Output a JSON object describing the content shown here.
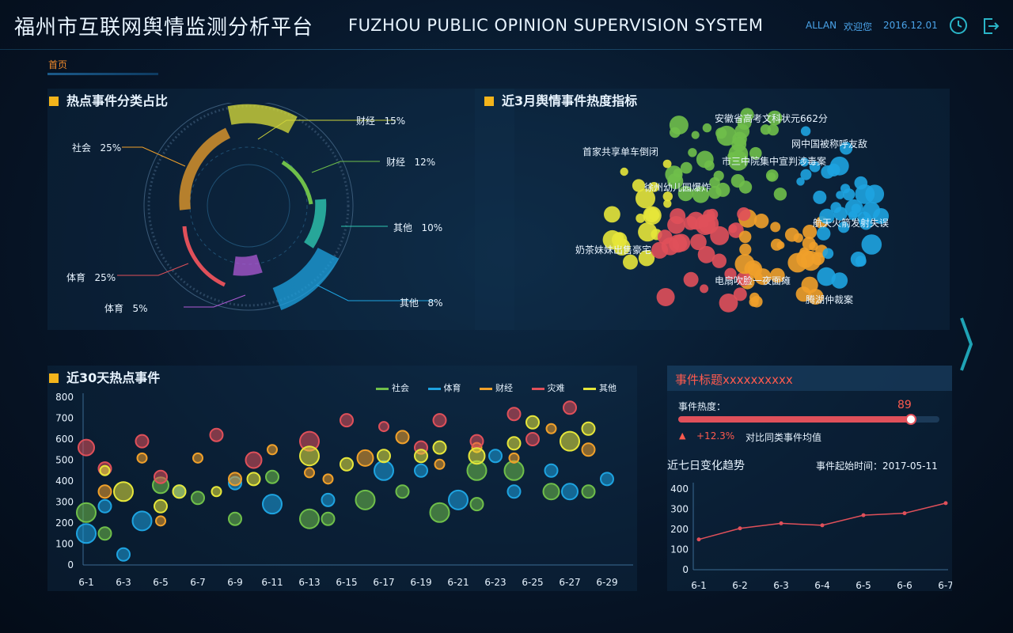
{
  "header": {
    "title": "福州市互联网舆情监测分析平台",
    "subtitle": "FUZHOU PUBLIC OPINION SUPERVISION SYSTEM",
    "user": "ALLAN",
    "welcome": "欢迎您",
    "date": "2016.12.01",
    "clock_icon": "clock-icon",
    "logout_icon": "logout-icon"
  },
  "nav": {
    "home": "首页"
  },
  "donut": {
    "title": "热点事件分类占比",
    "labels": [
      {
        "text": "财经",
        "pct": "15%",
        "color": "#cfd43a"
      },
      {
        "text": "财经",
        "pct": "12%",
        "color": "#6fbf4a"
      },
      {
        "text": "其他",
        "pct": "10%",
        "color": "#2ec7b0"
      },
      {
        "text": "其他",
        "pct": "8%",
        "color": "#1ea3e0"
      },
      {
        "text": "体育",
        "pct": "5%",
        "color": "#b05ad6"
      },
      {
        "text": "体育",
        "pct": "25%",
        "color": "#e0505a"
      },
      {
        "text": "社会",
        "pct": "25%",
        "color": "#f0a02a"
      }
    ]
  },
  "bubble_cloud": {
    "title": "近3月舆情事件热度指标",
    "labels": [
      "安徽省高考文科状元662分",
      "首家共享单车倒闭",
      "网中国被称呼友敌",
      "市三中院集中宣判涉毒案",
      "徐州幼儿园爆炸",
      "航天火箭发射失误",
      "奶茶妹妹出售豪宅",
      "电扇吹脸一夜面瘫",
      "腾湖仲裁案"
    ]
  },
  "scatter": {
    "title": "近30天热点事件",
    "legend": [
      {
        "name": "社会",
        "color": "#6fbf4a"
      },
      {
        "name": "体育",
        "color": "#1ea3e0"
      },
      {
        "name": "财经",
        "color": "#f0a02a"
      },
      {
        "name": "灾难",
        "color": "#e0505a"
      },
      {
        "name": "其他",
        "color": "#e6e63a"
      }
    ]
  },
  "detail": {
    "title": "事件标题xxxxxxxxxx",
    "heat_label": "事件热度：",
    "heat_value": "89",
    "heat_fraction": 0.89,
    "change": "+12.3%",
    "change_note": "对比同类事件均值",
    "trend_title": "近七日变化趋势",
    "start_time": "事件起始时间：2017-05-11"
  },
  "chart_data": [
    {
      "type": "scatter",
      "title": "近30天热点事件",
      "categories": [
        "6-1",
        "6-3",
        "6-5",
        "6-7",
        "6-9",
        "6-11",
        "6-13",
        "6-15",
        "6-17",
        "6-19",
        "6-21",
        "6-23",
        "6-25",
        "6-27",
        "6-29"
      ],
      "x_ticks": [
        "6-1",
        "6-3",
        "6-5",
        "6-7",
        "6-9",
        "6-11",
        "6-13",
        "6-15",
        "6-17",
        "6-19",
        "6-21",
        "6-23",
        "6-25",
        "6-27",
        "6-29"
      ],
      "y_ticks": [
        "0",
        "100",
        "200",
        "300",
        "400",
        "500",
        "600",
        "700",
        "800"
      ],
      "ylim": [
        0,
        800
      ],
      "series": [
        {
          "name": "社会",
          "color": "#6fbf4a",
          "points": [
            [
              1,
              250,
              12
            ],
            [
              2,
              150,
              8
            ],
            [
              5,
              380,
              10
            ],
            [
              7,
              320,
              8
            ],
            [
              9,
              220,
              8
            ],
            [
              11,
              420,
              8
            ],
            [
              13,
              220,
              12
            ],
            [
              14,
              220,
              8
            ],
            [
              16,
              310,
              12
            ],
            [
              18,
              350,
              8
            ],
            [
              20,
              250,
              12
            ],
            [
              22,
              290,
              8
            ],
            [
              22,
              450,
              12
            ],
            [
              24,
              450,
              12
            ],
            [
              26,
              350,
              10
            ],
            [
              28,
              350,
              8
            ]
          ]
        },
        {
          "name": "体育",
          "color": "#1ea3e0",
          "points": [
            [
              1,
              150,
              12
            ],
            [
              2,
              280,
              8
            ],
            [
              3,
              50,
              8
            ],
            [
              4,
              210,
              12
            ],
            [
              6,
              350,
              8
            ],
            [
              9,
              390,
              8
            ],
            [
              11,
              290,
              12
            ],
            [
              14,
              310,
              8
            ],
            [
              17,
              450,
              12
            ],
            [
              19,
              450,
              8
            ],
            [
              21,
              310,
              12
            ],
            [
              23,
              520,
              8
            ],
            [
              24,
              350,
              8
            ],
            [
              26,
              450,
              8
            ],
            [
              27,
              350,
              10
            ],
            [
              29,
              410,
              8
            ]
          ]
        },
        {
          "name": "财经",
          "color": "#f0a02a",
          "points": [
            [
              2,
              350,
              8
            ],
            [
              4,
              510,
              6
            ],
            [
              5,
              210,
              6
            ],
            [
              7,
              510,
              6
            ],
            [
              9,
              410,
              8
            ],
            [
              11,
              550,
              6
            ],
            [
              13,
              440,
              6
            ],
            [
              14,
              410,
              6
            ],
            [
              16,
              510,
              10
            ],
            [
              18,
              610,
              8
            ],
            [
              20,
              480,
              6
            ],
            [
              22,
              560,
              6
            ],
            [
              24,
              510,
              6
            ],
            [
              26,
              650,
              6
            ],
            [
              28,
              550,
              8
            ]
          ]
        },
        {
          "name": "灾难",
          "color": "#e0505a",
          "points": [
            [
              1,
              560,
              10
            ],
            [
              2,
              460,
              8
            ],
            [
              4,
              590,
              8
            ],
            [
              5,
              420,
              8
            ],
            [
              8,
              620,
              8
            ],
            [
              10,
              500,
              10
            ],
            [
              13,
              590,
              12
            ],
            [
              15,
              690,
              8
            ],
            [
              17,
              660,
              6
            ],
            [
              19,
              560,
              8
            ],
            [
              20,
              690,
              8
            ],
            [
              22,
              590,
              8
            ],
            [
              24,
              720,
              8
            ],
            [
              25,
              600,
              8
            ],
            [
              27,
              750,
              8
            ]
          ]
        },
        {
          "name": "其他",
          "color": "#e6e63a",
          "points": [
            [
              2,
              450,
              6
            ],
            [
              3,
              350,
              12
            ],
            [
              5,
              280,
              8
            ],
            [
              6,
              350,
              8
            ],
            [
              8,
              350,
              6
            ],
            [
              10,
              410,
              8
            ],
            [
              13,
              520,
              12
            ],
            [
              15,
              480,
              8
            ],
            [
              17,
              520,
              8
            ],
            [
              19,
              520,
              8
            ],
            [
              20,
              560,
              8
            ],
            [
              22,
              520,
              10
            ],
            [
              24,
              580,
              8
            ],
            [
              25,
              680,
              8
            ],
            [
              27,
              590,
              12
            ],
            [
              28,
              650,
              8
            ]
          ]
        }
      ]
    },
    {
      "type": "line",
      "title": "近七日变化趋势",
      "categories": [
        "6-1",
        "6-2",
        "6-3",
        "6-4",
        "6-5",
        "6-6",
        "6-7"
      ],
      "values": [
        150,
        205,
        230,
        220,
        270,
        280,
        330
      ],
      "y_ticks": [
        "0",
        "100",
        "200",
        "300",
        "400"
      ],
      "ylim": [
        0,
        400
      ],
      "color": "#e0505a"
    }
  ]
}
